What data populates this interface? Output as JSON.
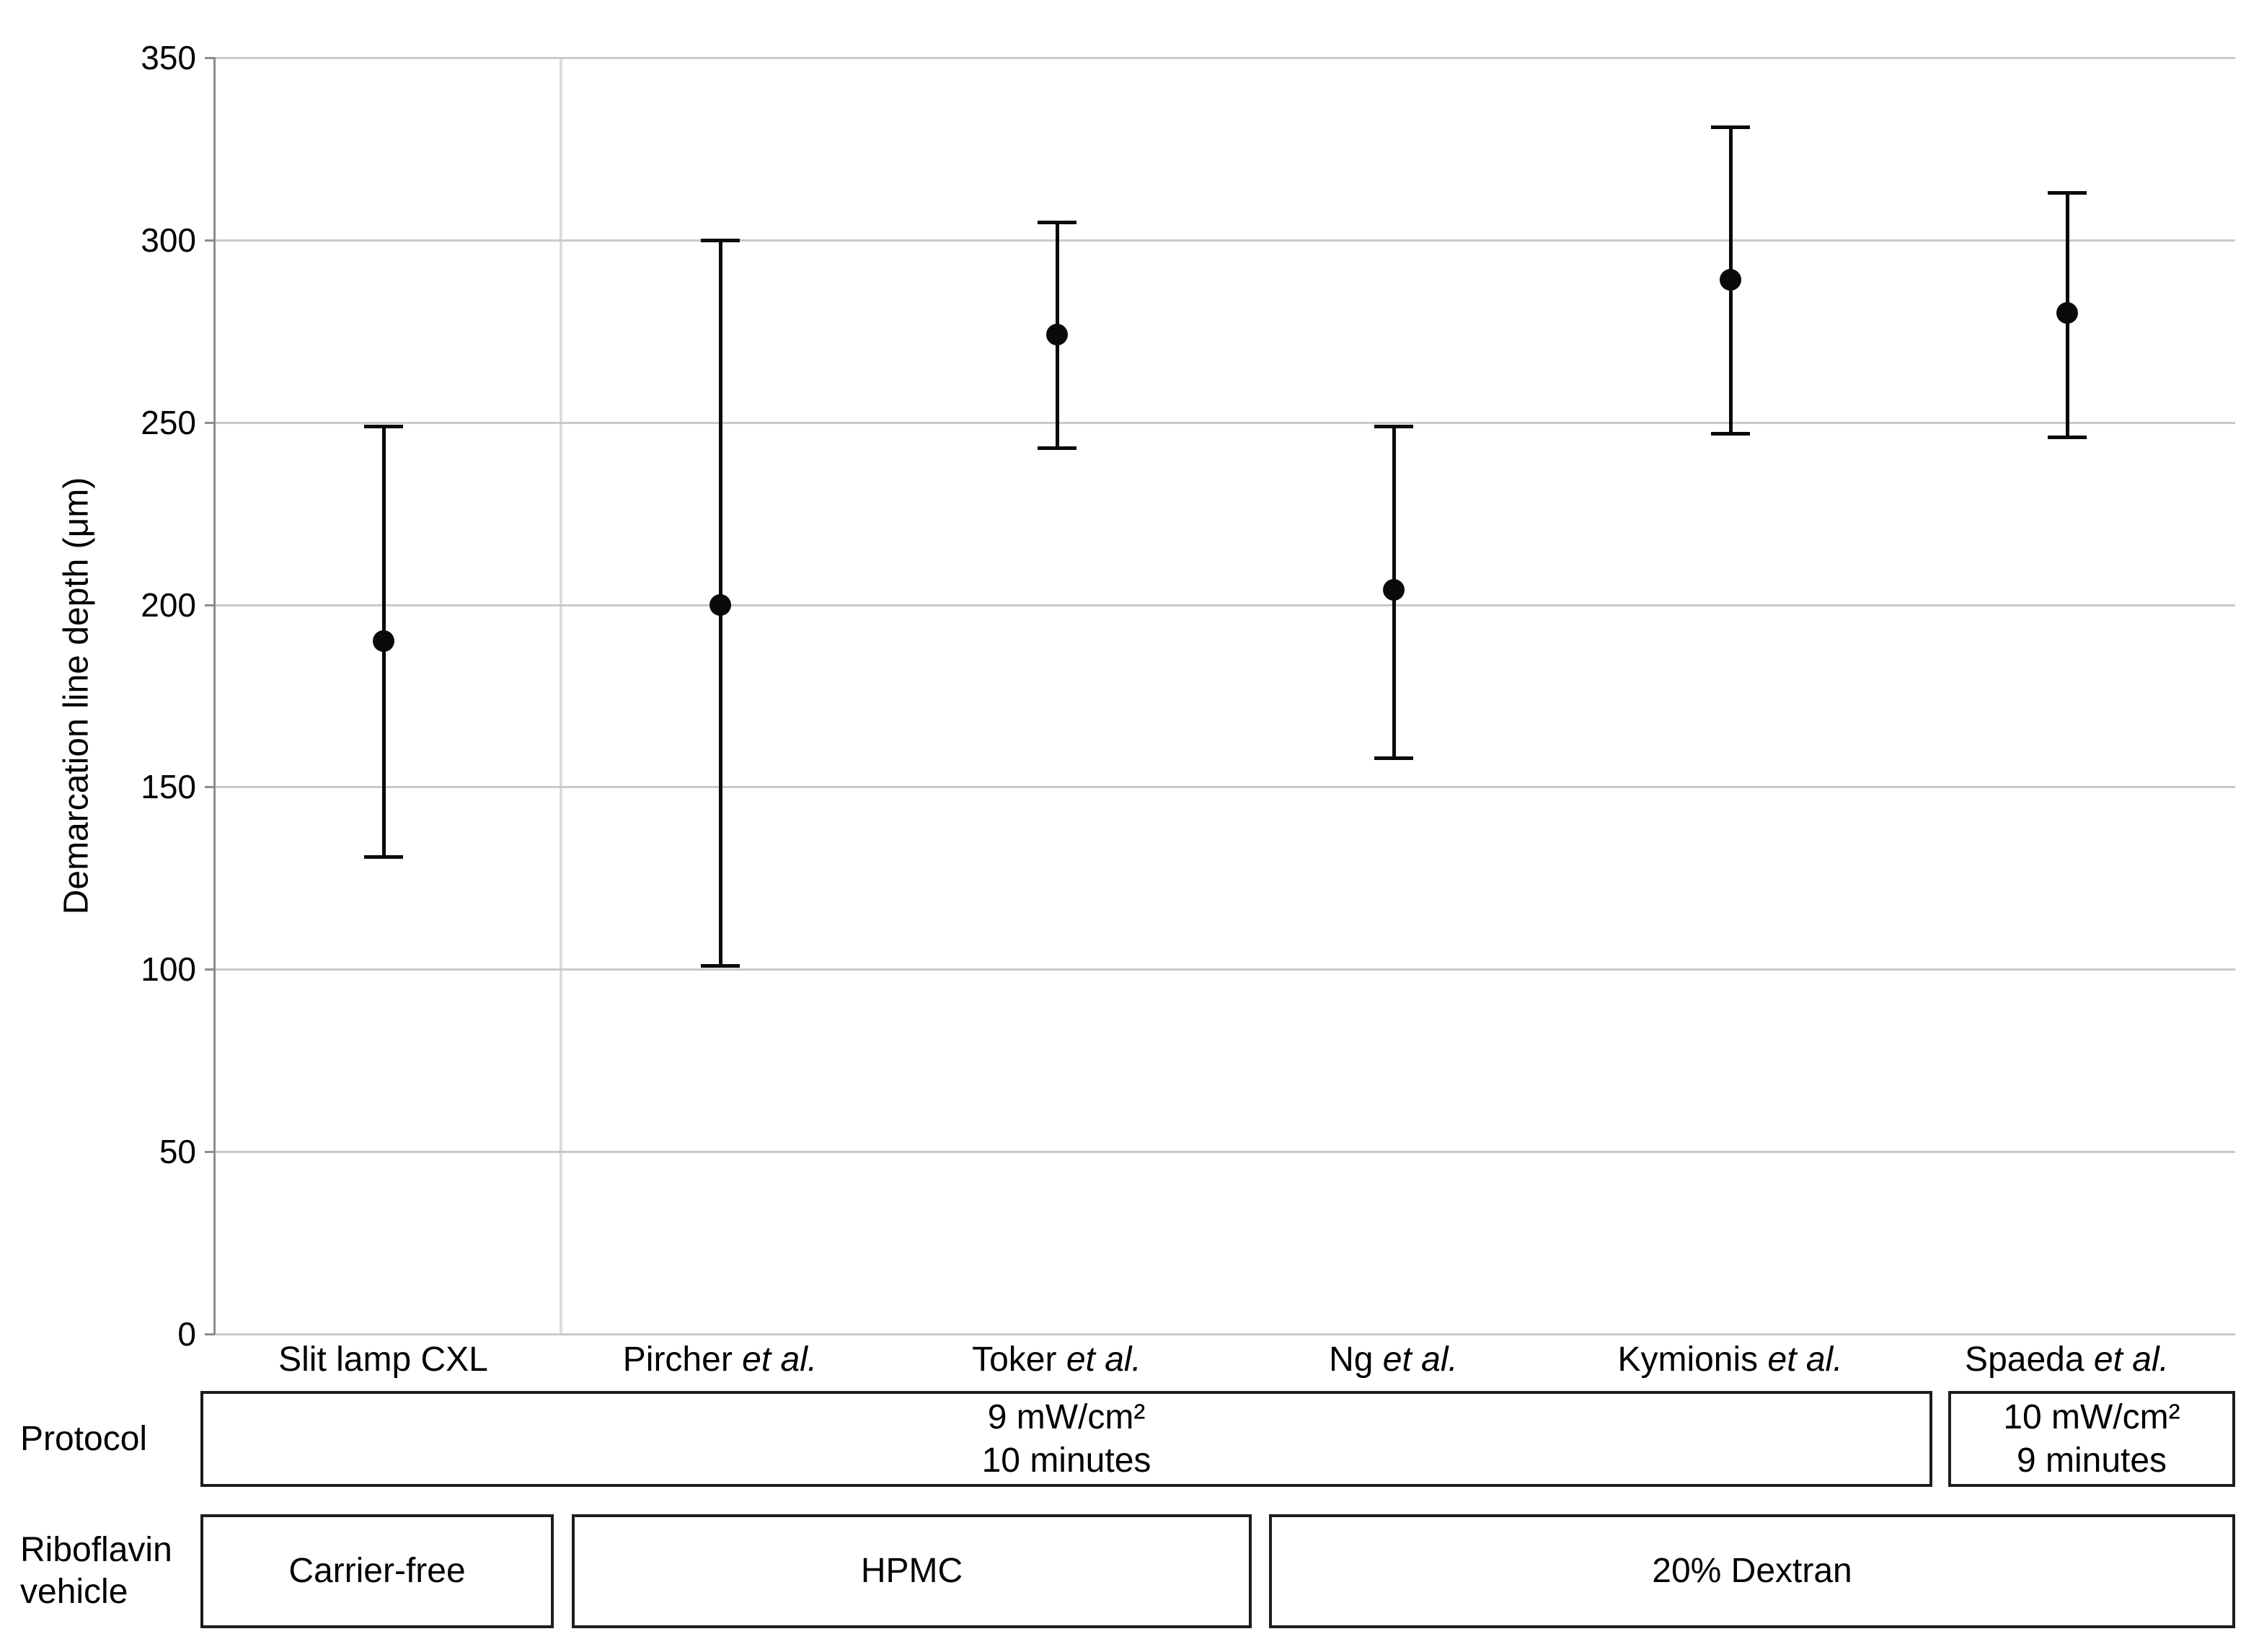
{
  "chart_data": {
    "type": "scatter",
    "title": "",
    "ylabel": "Demarcation line depth (μm)",
    "ylim": [
      0,
      350
    ],
    "yticks": [
      0,
      50,
      100,
      150,
      200,
      250,
      300,
      350
    ],
    "grid": true,
    "legend": "none",
    "categories": [
      {
        "text": "Slit lamp CXL",
        "italic_suffix": ""
      },
      {
        "text": "Pircher",
        "italic_suffix": "et al."
      },
      {
        "text": "Toker",
        "italic_suffix": "et al."
      },
      {
        "text": "Ng",
        "italic_suffix": "et al."
      },
      {
        "text": "Kymionis",
        "italic_suffix": "et al."
      },
      {
        "text": "Spaeda",
        "italic_suffix": "et al."
      }
    ],
    "series": [
      {
        "name": "Demarcation line depth (mean with error bars)",
        "means": [
          190,
          200,
          274,
          204,
          289,
          280
        ],
        "ci_low": [
          131,
          101,
          243,
          158,
          247,
          246
        ],
        "ci_high": [
          249,
          300,
          305,
          249,
          331,
          313
        ]
      }
    ],
    "separator_after_index": 0,
    "annotation_rows": [
      {
        "label": "Protocol",
        "cells": [
          {
            "lines": [
              "9 mW/cm²",
              "10 minutes"
            ],
            "span": [
              0,
              4
            ]
          },
          {
            "lines": [
              "10 mW/cm²",
              "9 minutes"
            ],
            "span": [
              5,
              5
            ]
          }
        ]
      },
      {
        "label_lines": [
          "Riboflavin",
          "vehicle"
        ],
        "cells": [
          {
            "lines": [
              "Carrier-free"
            ],
            "span": [
              0,
              0
            ]
          },
          {
            "lines": [
              "HPMC"
            ],
            "span": [
              1,
              2
            ]
          },
          {
            "lines": [
              "20% Dextran"
            ],
            "span": [
              3,
              5
            ]
          }
        ]
      }
    ],
    "colors": {
      "point": "#0a0a0a",
      "gridline": "#c9c9c9",
      "axis": "#8c8c8c",
      "group_separator": "#dcdcdc",
      "table_border": "#1d1d1d"
    }
  }
}
